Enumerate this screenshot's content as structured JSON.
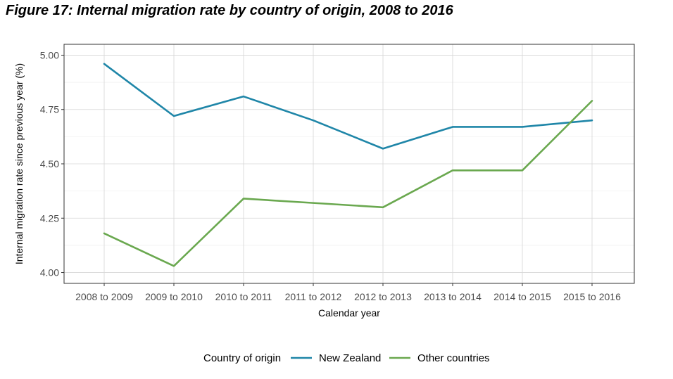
{
  "chart_data": {
    "type": "line",
    "title": "Figure 17: Internal migration rate by country of origin, 2008 to 2016",
    "xlabel": "Calendar year",
    "ylabel": "Internal migration rate since previous year (%)",
    "categories": [
      "2008 to 2009",
      "2009 to 2010",
      "2010 to 2011",
      "2011 to 2012",
      "2012 to 2013",
      "2013 to 2014",
      "2014 to 2015",
      "2015 to 2016"
    ],
    "ylim": [
      3.95,
      5.05
    ],
    "yticks": [
      4.0,
      4.25,
      4.5,
      4.75,
      5.0
    ],
    "ytick_labels": [
      "4.00",
      "4.25",
      "4.50",
      "4.75",
      "5.00"
    ],
    "grid": true,
    "series": [
      {
        "name": "New Zealand",
        "color": "#1f86a8",
        "values": [
          4.96,
          4.72,
          4.81,
          4.7,
          4.57,
          4.67,
          4.67,
          4.7
        ]
      },
      {
        "name": "Other countries",
        "color": "#6aa84f",
        "values": [
          4.18,
          4.03,
          4.34,
          4.32,
          4.3,
          4.47,
          4.47,
          4.79
        ]
      }
    ],
    "legend": {
      "title": "Country of origin",
      "position": "bottom"
    }
  }
}
